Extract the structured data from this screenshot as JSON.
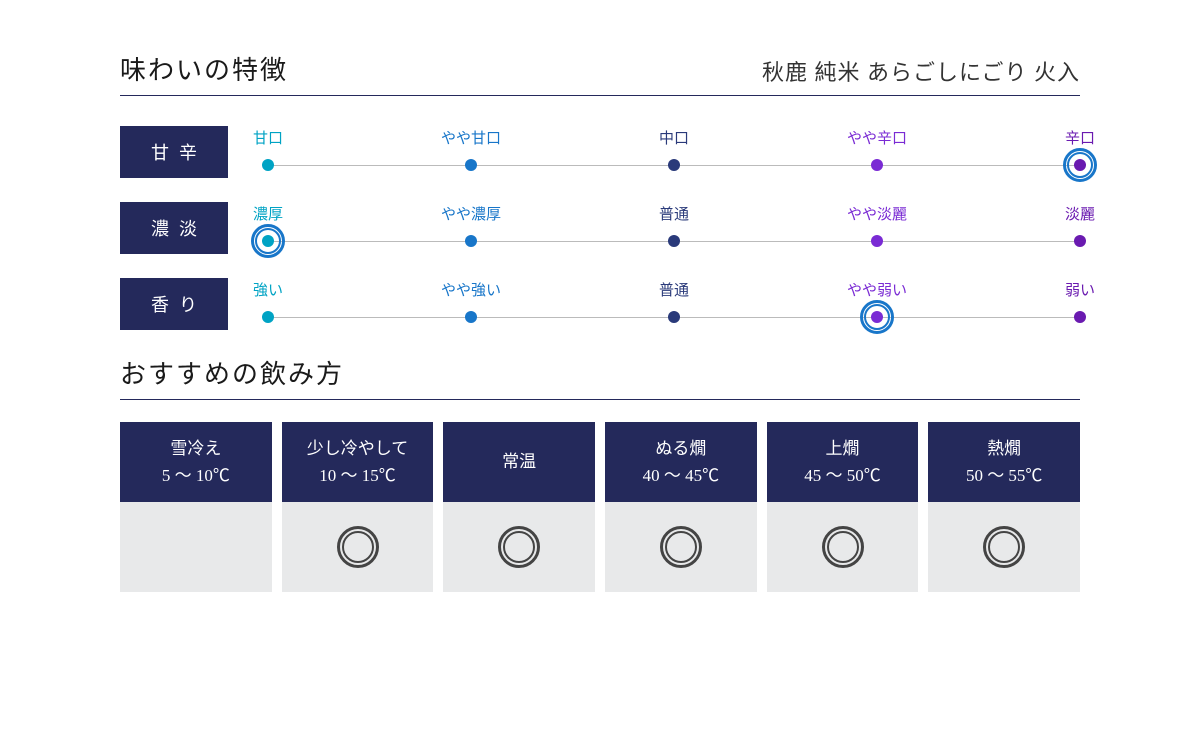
{
  "colors": {
    "navy": "#24295b",
    "ring": "#1876c9",
    "scale_line": "#bbbbbb",
    "dot_gradient": [
      "#00a3c4",
      "#1876c9",
      "#2a3a7a",
      "#7a2bd4",
      "#6a1ab0"
    ],
    "temp_body_bg": "#e8e9ea",
    "circle": "#444444"
  },
  "flavor": {
    "title": "味わいの特徴",
    "product": "秋鹿 純米 あらごしにごり 火入",
    "rows": [
      {
        "axis": "甘辛",
        "labels": [
          "甘口",
          "やや甘口",
          "中口",
          "やや辛口",
          "辛口"
        ],
        "selected_index": 4
      },
      {
        "axis": "濃淡",
        "labels": [
          "濃厚",
          "やや濃厚",
          "普通",
          "やや淡麗",
          "淡麗"
        ],
        "selected_index": 0
      },
      {
        "axis": "香り",
        "labels": [
          "強い",
          "やや強い",
          "普通",
          "やや弱い",
          "弱い"
        ],
        "selected_index": 3
      }
    ]
  },
  "serving": {
    "title": "おすすめの飲み方",
    "columns": [
      {
        "name": "雪冷え",
        "range": "5 〜 10℃",
        "recommended": false
      },
      {
        "name": "少し冷やして",
        "range": "10 〜 15℃",
        "recommended": true
      },
      {
        "name": "常温",
        "range": "",
        "recommended": true
      },
      {
        "name": "ぬる燗",
        "range": "40 〜 45℃",
        "recommended": true
      },
      {
        "name": "上燗",
        "range": "45 〜 50℃",
        "recommended": true
      },
      {
        "name": "熱燗",
        "range": "50 〜 55℃",
        "recommended": true
      }
    ]
  }
}
